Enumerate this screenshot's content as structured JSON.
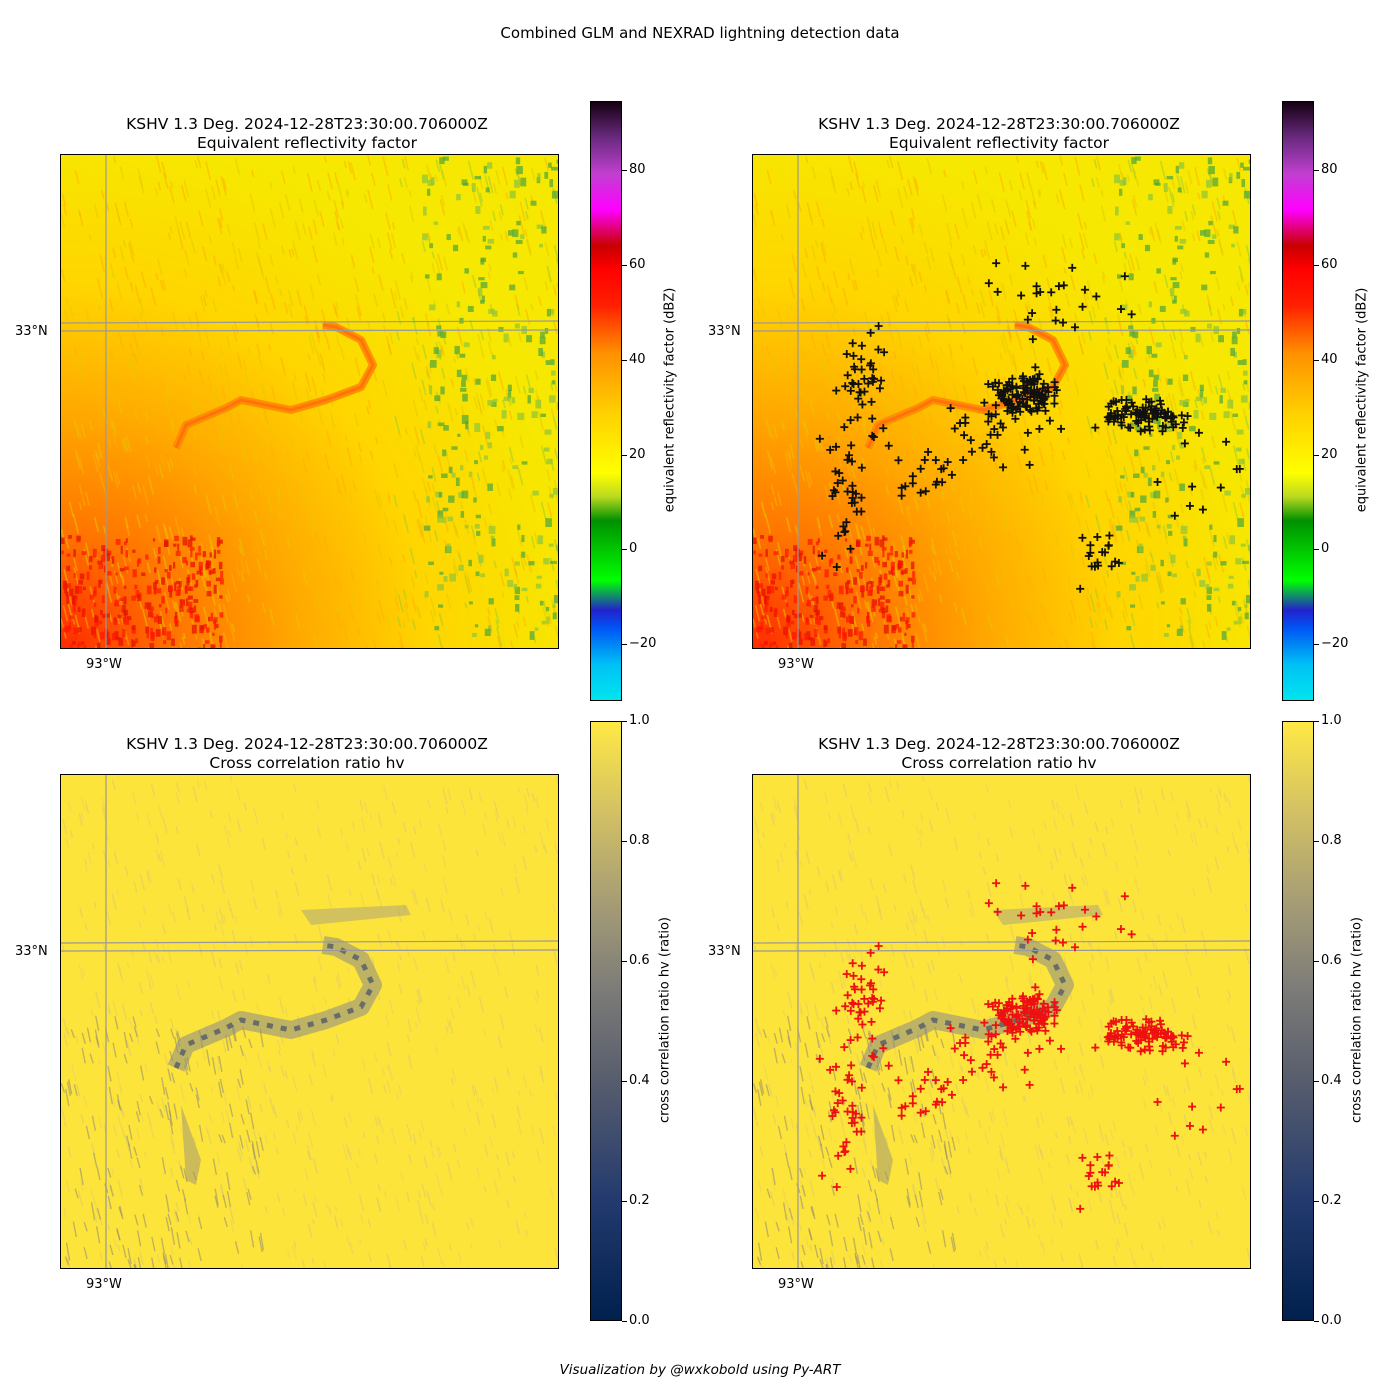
{
  "figure": {
    "title": "Combined GLM and NEXRAD lightning detection data",
    "footer": "Visualization by @wxkobold using Py-ART"
  },
  "panels": [
    {
      "id": "tl",
      "title_line1": "KSHV 1.3 Deg. 2024-12-28T23:30:00.706000Z",
      "title_line2": "Equivalent reflectivity factor",
      "field": "reflectivity",
      "lightning": false
    },
    {
      "id": "tr",
      "title_line1": "KSHV 1.3 Deg. 2024-12-28T23:30:00.706000Z",
      "title_line2": "Equivalent reflectivity factor",
      "field": "reflectivity",
      "lightning": true,
      "marker_color": "#111111"
    },
    {
      "id": "bl",
      "title_line1": "KSHV 1.3 Deg. 2024-12-28T23:30:00.706000Z",
      "title_line2": "Cross correlation ratio hv",
      "field": "rhohv",
      "lightning": false
    },
    {
      "id": "br",
      "title_line1": "KSHV 1.3 Deg. 2024-12-28T23:30:00.706000Z",
      "title_line2": "Cross correlation ratio hv",
      "field": "rhohv",
      "lightning": true,
      "marker_color": "#ee1111"
    }
  ],
  "axes": {
    "lat_label": "33°N",
    "lon_label": "93°W"
  },
  "colorbars": {
    "reflectivity": {
      "label": "equivalent reflectivity factor (dBZ)",
      "ticks": [
        "80",
        "60",
        "40",
        "20",
        "0",
        "−20"
      ],
      "range": [
        -30,
        95
      ]
    },
    "rhohv": {
      "label": "cross correlation ratio hv (ratio)",
      "ticks": [
        "1.0",
        "0.8",
        "0.6",
        "0.4",
        "0.2",
        "0.0"
      ],
      "range": [
        0,
        1
      ]
    }
  },
  "chart_data": {
    "type": "scatter",
    "title": "Combined GLM and NEXRAD lightning detection data",
    "description_fields": [
      "equivalent reflectivity factor (dBZ)",
      "cross correlation ratio hv (ratio)"
    ],
    "grid_lines": {
      "latitude": "33°N",
      "longitude": "93°W"
    },
    "series": [
      {
        "name": "",
        "marker": "+",
        "colors": [
          "#111111",
          "#ee1111"
        ]
      }
    ]
  }
}
